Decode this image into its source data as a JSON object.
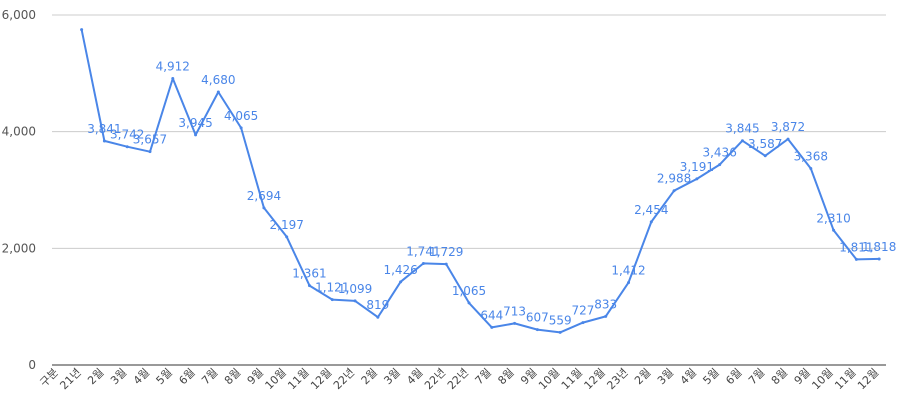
{
  "chart_data": {
    "type": "line",
    "categories": [
      "구분",
      "21년",
      "2월",
      "3월",
      "4월",
      "5월",
      "6월",
      "7월",
      "8월",
      "9월",
      "10월",
      "11월",
      "12월",
      "22년",
      "2월",
      "3월",
      "4월",
      "22년",
      "22년",
      "7월",
      "8월",
      "9월",
      "10월",
      "11월",
      "12월",
      "23년",
      "2월",
      "3월",
      "4월",
      "5월",
      "6월",
      "7월",
      "8월",
      "9월",
      "10월",
      "11월",
      "12월"
    ],
    "series": [
      {
        "color": "#4a86e8",
        "values": [
          null,
          5750,
          3841,
          3742,
          3657,
          4912,
          3945,
          4680,
          4065,
          2694,
          2197,
          1361,
          1121,
          1099,
          819,
          1426,
          1741,
          1729,
          1065,
          644,
          713,
          607,
          559,
          727,
          833,
          1412,
          2454,
          2988,
          3191,
          3436,
          3845,
          3587,
          3872,
          3368,
          2310,
          1811,
          1818
        ],
        "labels": [
          null,
          null,
          "3,841",
          "3,742",
          "3,657",
          "4,912",
          "3,945",
          "4,680",
          "4,065",
          "2,694",
          "2,197",
          "1,361",
          "1,121",
          "1,099",
          "819",
          "1,426",
          "1,741",
          "1,729",
          "1,065",
          "644",
          "713",
          "607",
          "559",
          "727",
          "833",
          "1,412",
          "2,454",
          "2,988",
          "3,191",
          "3,436",
          "3,845",
          "3,587",
          "3,872",
          "3,368",
          "2,310",
          "1,811",
          "1,818"
        ]
      }
    ],
    "y_ticks": [
      "0",
      "2,000",
      "4,000",
      "6,000"
    ],
    "ylim": [
      0,
      6000
    ],
    "grid": true,
    "legend": "none"
  }
}
